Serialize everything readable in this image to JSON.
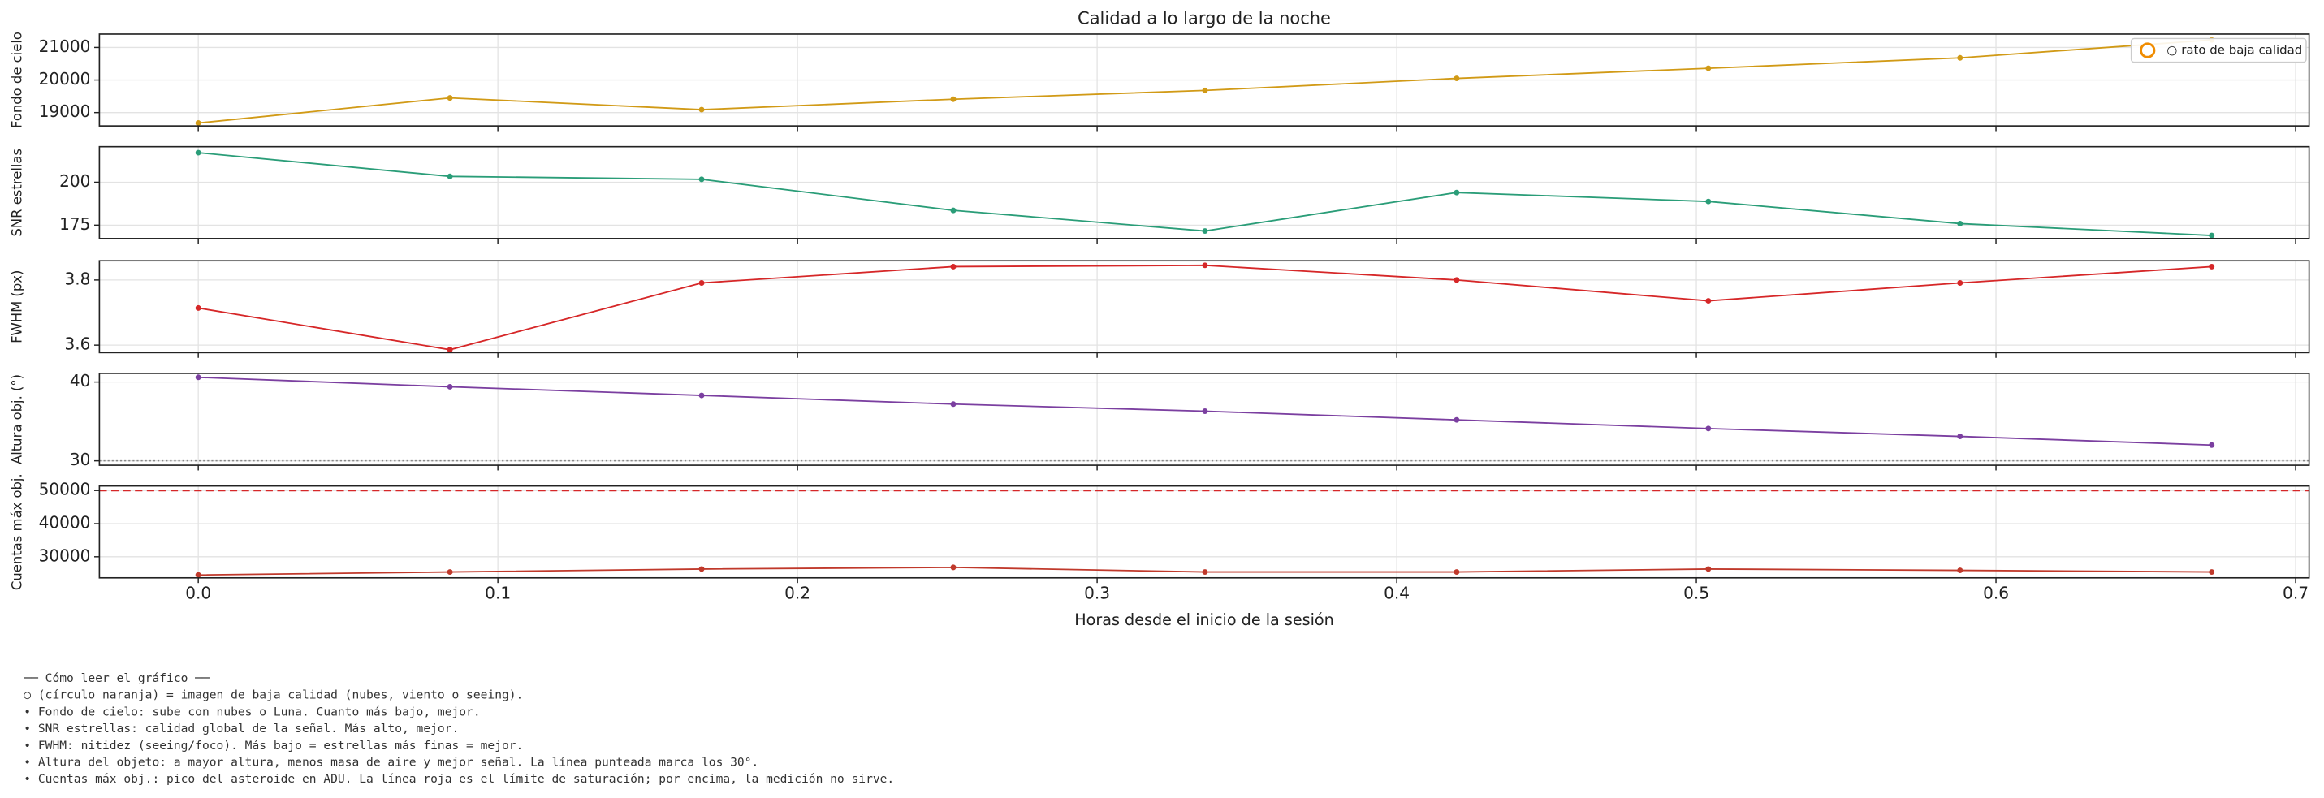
{
  "chart_data": [
    {
      "type": "line",
      "title": "Calidad a lo largo de la noche",
      "ylabel": "Fondo de cielo",
      "x": [
        0,
        0.084,
        0.168,
        0.252,
        0.336,
        0.42,
        0.504,
        0.588,
        0.672
      ],
      "values": [
        18680,
        19450,
        19090,
        19410,
        19680,
        20050,
        20360,
        20680,
        21230
      ],
      "color": "#d19a16",
      "xlim": [
        -0.033,
        0.7045
      ],
      "xticks": [
        {
          "value": 0,
          "label": "0.0"
        },
        0.1,
        0.2,
        0.3,
        0.4,
        0.5,
        0.6,
        0.7
      ],
      "ylim": [
        18590,
        21410
      ],
      "yticks": [
        19000,
        20000,
        21000
      ],
      "grid": true,
      "legend": {
        "labels": [
          "○ rato de baja calidad"
        ],
        "color": "#f08c00",
        "loc": "upper right"
      }
    },
    {
      "type": "line",
      "ylabel": "SNR estrellas",
      "x": [
        0,
        0.084,
        0.168,
        0.252,
        0.336,
        0.42,
        0.504,
        0.588,
        0.672
      ],
      "values": [
        217.2,
        203.4,
        201.7,
        183.6,
        171.6,
        194,
        188.8,
        175.9,
        169
      ],
      "color": "#2a9d78",
      "xlim": [
        -0.033,
        0.7045
      ],
      "xticks": [
        {
          "value": 0,
          "label": "0.0"
        },
        0.1,
        0.2,
        0.3,
        0.4,
        0.5,
        0.6,
        0.7
      ],
      "ylim": [
        167.2,
        220.7
      ],
      "yticks": [
        175,
        200
      ],
      "grid": true
    },
    {
      "type": "line",
      "ylabel": "FWHM (px)",
      "x": [
        0,
        0.084,
        0.168,
        0.252,
        0.336,
        0.42,
        0.504,
        0.588,
        0.672
      ],
      "values": [
        3.714,
        3.586,
        3.791,
        3.841,
        3.845,
        3.8,
        3.736,
        3.791,
        3.841
      ],
      "color": "#d62728",
      "xlim": [
        -0.033,
        0.7045
      ],
      "xticks": [
        {
          "value": 0,
          "label": "0.0"
        },
        0.1,
        0.2,
        0.3,
        0.4,
        0.5,
        0.6,
        0.7
      ],
      "ylim": [
        3.577,
        3.859
      ],
      "yticks": [
        3.6,
        3.8
      ],
      "grid": true
    },
    {
      "type": "line",
      "ylabel": "Altura obj. (°)",
      "x": [
        0,
        0.084,
        0.168,
        0.252,
        0.336,
        0.42,
        0.504,
        0.588,
        0.672
      ],
      "values": [
        40.6,
        39.4,
        38.3,
        37.2,
        36.3,
        35.2,
        34.1,
        33.1,
        32.0
      ],
      "color": "#7b3fa0",
      "xlim": [
        -0.033,
        0.7045
      ],
      "xticks": [
        {
          "value": 0,
          "label": "0.0"
        },
        0.1,
        0.2,
        0.3,
        0.4,
        0.5,
        0.6,
        0.7
      ],
      "ylim": [
        29.44,
        41.1
      ],
      "yticks": [
        30,
        40
      ],
      "grid": true,
      "hline": {
        "value": 30,
        "color": "#888888",
        "style": "dotted"
      }
    },
    {
      "type": "line",
      "ylabel": "Cuentas máx obj.",
      "xlabel": "Horas desde el inicio de la sesión",
      "x": [
        0,
        0.084,
        0.168,
        0.252,
        0.336,
        0.42,
        0.504,
        0.588,
        0.672
      ],
      "values": [
        24500,
        25400,
        26300,
        26800,
        25400,
        25400,
        26300,
        25900,
        25400
      ],
      "color": "#c0392b",
      "xlim": [
        -0.033,
        0.7045
      ],
      "xticks": [
        {
          "value": 0,
          "label": "0.0"
        },
        0.1,
        0.2,
        0.3,
        0.4,
        0.5,
        0.6,
        0.7
      ],
      "ylim": [
        23636,
        51364
      ],
      "yticks": [
        30000,
        40000,
        50000
      ],
      "grid": true,
      "hline": {
        "value": 50000,
        "color": "#d62728",
        "style": "dashed"
      }
    }
  ],
  "notes": [
    "── Cómo leer el gráfico ──",
    "○ (círculo naranja) = imagen de baja calidad (nubes, viento o seeing).",
    "• Fondo de cielo: sube con nubes o Luna. Cuanto más bajo, mejor.",
    "• SNR estrellas: calidad global de la señal. Más alto, mejor.",
    "• FWHM: nitidez (seeing/foco). Más bajo = estrellas más finas = mejor.",
    "• Altura del objeto: a mayor altura, menos masa de aire y mejor señal. La línea punteada marca los 30°.",
    "• Cuentas máx obj.: pico del asteroide en ADU. La línea roja es el límite de saturación; por encima, la medición no sirve."
  ]
}
